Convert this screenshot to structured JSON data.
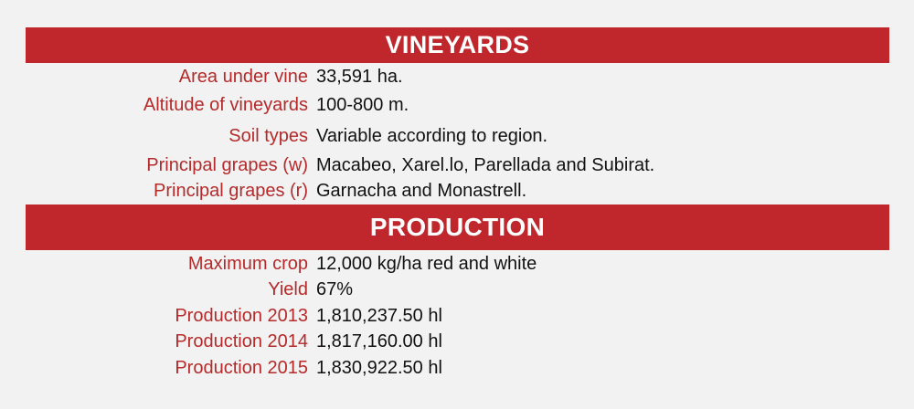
{
  "sections": [
    {
      "title": "VINEYARDS",
      "rows": [
        {
          "label": "Area under vine",
          "value": "33,591 ha."
        },
        {
          "label": "Altitude of vineyards",
          "value": "100-800 m."
        },
        {
          "label": "Soil types",
          "value": "Variable according to region."
        },
        {
          "label": "Principal grapes (w)",
          "value": "Macabeo, Xarel.lo, Parellada and Subirat."
        },
        {
          "label": "Principal grapes (r)",
          "value": "Garnacha and Monastrell."
        }
      ]
    },
    {
      "title": "PRODUCTION",
      "rows": [
        {
          "label": "Maximum crop",
          "value": "12,000 kg/ha red and white"
        },
        {
          "label": "Yield",
          "value": "67%"
        },
        {
          "label": "Production 2013",
          "value": "1,810,237.50 hl"
        },
        {
          "label": "Production 2014",
          "value": "1,817,160.00 hl"
        },
        {
          "label": "Production 2015",
          "value": "1,830,922.50 hl"
        }
      ]
    }
  ],
  "colors": {
    "header_bg": "#c0272d",
    "label_text": "#b52a2a",
    "value_text": "#111111",
    "page_bg": "#f2f2f2"
  }
}
